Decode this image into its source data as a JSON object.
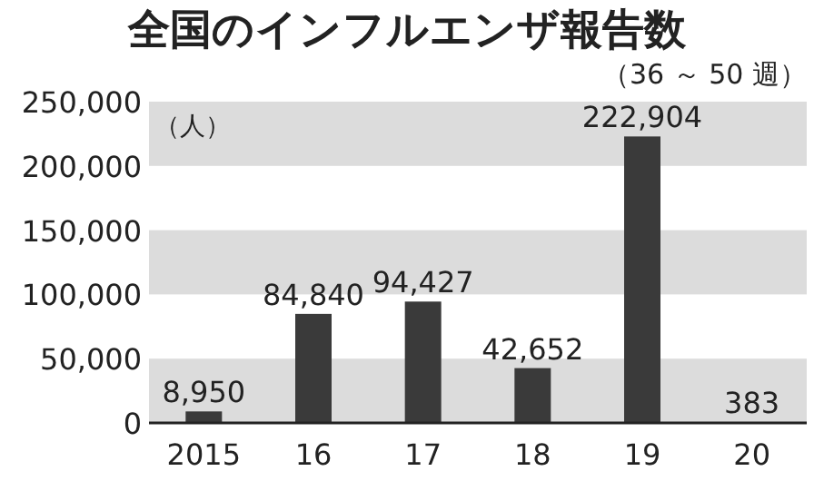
{
  "chart_data": {
    "type": "bar",
    "title": "全国のインフルエンザ報告数",
    "subtitle": "（36 ～ 50 週）",
    "ylabel": "（人）",
    "categories": [
      "2015",
      "16",
      "17",
      "18",
      "19",
      "20"
    ],
    "values": [
      8950,
      84840,
      94427,
      42652,
      222904,
      383
    ],
    "value_labels": [
      "8,950",
      "84,840",
      "94,427",
      "42,652",
      "222,904",
      "383"
    ],
    "color": "#3a3a3a",
    "ylim": [
      0,
      250000
    ],
    "yticks": [
      0,
      {
        "value": 50000,
        "label": "50,000"
      },
      {
        "value": 100000,
        "label": "100,000"
      },
      {
        "value": 150000,
        "label": "150,000"
      },
      {
        "value": 200000,
        "label": "200,000"
      },
      {
        "value": 250000,
        "label": "250,000"
      }
    ],
    "bands": [
      {
        "axis": "y",
        "from": 0,
        "to": 50000,
        "color": "#dcdcdc"
      },
      {
        "axis": "y",
        "from": 100000,
        "to": 150000,
        "color": "#dcdcdc"
      },
      {
        "axis": "y",
        "from": 200000,
        "to": 250000,
        "color": "#dcdcdc"
      }
    ]
  }
}
